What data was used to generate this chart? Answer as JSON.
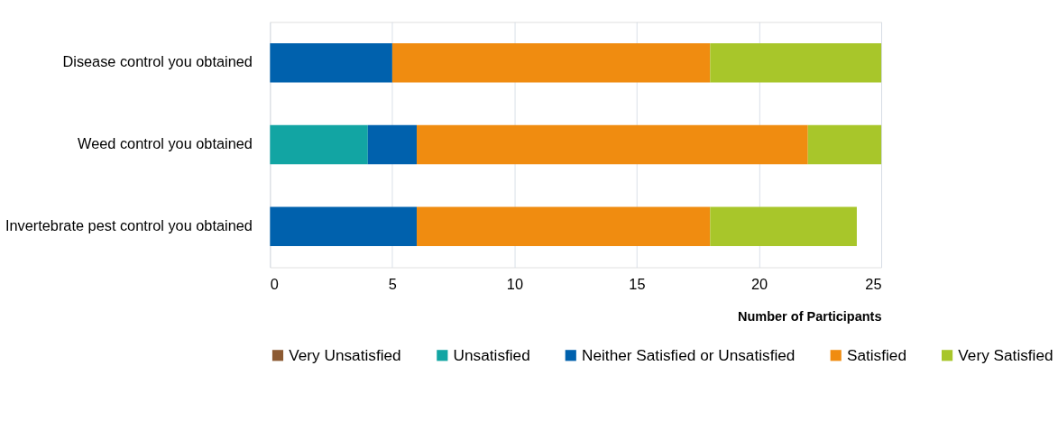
{
  "chart_data": {
    "type": "bar",
    "orientation": "horizontal",
    "stacked": true,
    "categories": [
      "Disease control you obtained",
      "Weed control you obtained",
      "Invertebrate pest control you obtained"
    ],
    "series": [
      {
        "name": "Very Unsatisfied",
        "color": "#8c5a32",
        "values": [
          0,
          0,
          0
        ]
      },
      {
        "name": "Unsatisfied",
        "color": "#12a5a3",
        "values": [
          0,
          4,
          0
        ]
      },
      {
        "name": "Neither Satisfied or Unsatisfied",
        "color": "#0061ad",
        "values": [
          5,
          2,
          6
        ]
      },
      {
        "name": "Satisfied",
        "color": "#f08c10",
        "values": [
          13,
          16,
          12
        ]
      },
      {
        "name": "Very Satisfied",
        "color": "#a8c62a",
        "values": [
          7,
          3,
          6
        ]
      }
    ],
    "xlabel": "Number of Participants",
    "xlim": [
      0,
      25
    ],
    "xticks": [
      0,
      5,
      10,
      15,
      20,
      25
    ],
    "grid": "x",
    "legend": "bottom"
  }
}
